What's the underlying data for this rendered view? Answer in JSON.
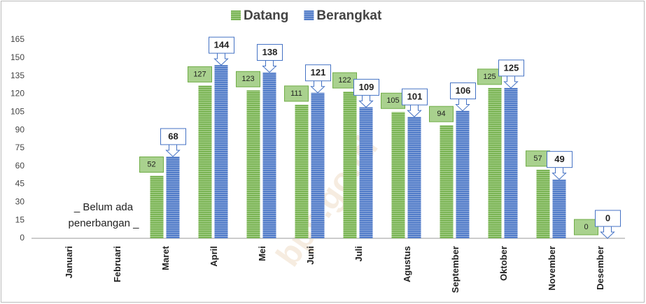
{
  "chart_data": {
    "type": "bar",
    "categories": [
      "Januari",
      "Februari",
      "Maret",
      "April",
      "Mei",
      "Juni",
      "Juli",
      "Agustus",
      "September",
      "Oktober",
      "November",
      "Desember"
    ],
    "series": [
      {
        "name": "Datang",
        "color": "#70ad47",
        "values": [
          null,
          null,
          52,
          127,
          123,
          111,
          122,
          105,
          94,
          125,
          57,
          0
        ]
      },
      {
        "name": "Berangkat",
        "color": "#4472c4",
        "values": [
          null,
          null,
          68,
          144,
          138,
          121,
          109,
          101,
          106,
          125,
          49,
          0
        ]
      }
    ],
    "ylim": [
      0,
      165
    ],
    "yticks": [
      0,
      15,
      30,
      45,
      60,
      75,
      90,
      105,
      120,
      135,
      150,
      165
    ],
    "annotations": [
      "_ Belum ada",
      "penerbangan _"
    ],
    "watermark": "bps.go.id",
    "legend": "top"
  }
}
